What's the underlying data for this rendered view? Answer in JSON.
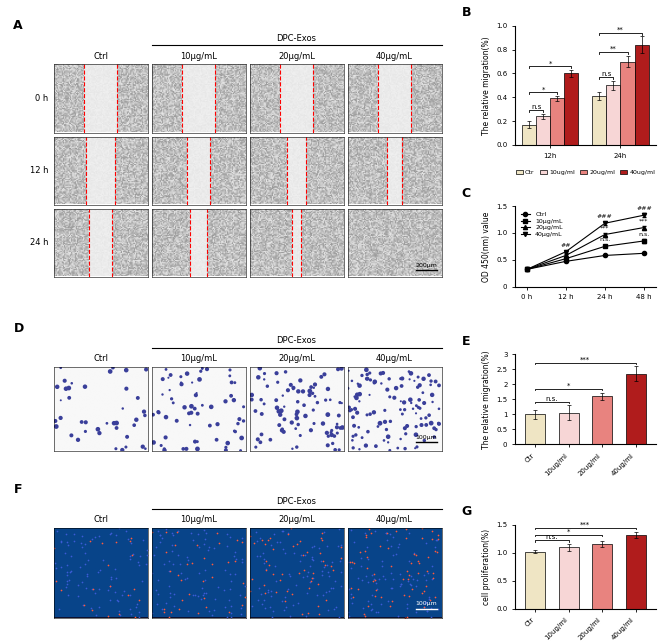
{
  "chart_data": [
    {
      "panel_label": "B",
      "type": "bar",
      "y_label": "The relative migration(%)",
      "categories": [
        "12h",
        "24h"
      ],
      "series": [
        {
          "name": "Ctr",
          "color": "#efe5c4",
          "values": [
            0.17,
            0.41
          ],
          "errors": [
            0.03,
            0.03
          ]
        },
        {
          "name": "10ug/ml",
          "color": "#f7d6d6",
          "values": [
            0.24,
            0.5
          ],
          "errors": [
            0.02,
            0.04
          ]
        },
        {
          "name": "20ug/ml",
          "color": "#e8837f",
          "values": [
            0.39,
            0.7
          ],
          "errors": [
            0.02,
            0.05
          ]
        },
        {
          "name": "40ug/ml",
          "color": "#b01c1c",
          "values": [
            0.6,
            0.84
          ],
          "errors": [
            0.03,
            0.07
          ]
        }
      ],
      "ylim": [
        0,
        1.0
      ],
      "yticks": [
        0.0,
        0.2,
        0.4,
        0.6,
        0.8,
        1.0
      ],
      "legend": "bottom",
      "significance": [
        {
          "category": "12h",
          "from": "Ctr",
          "to": "10ug/ml",
          "text": "n.s"
        },
        {
          "category": "12h",
          "from": "Ctr",
          "to": "20ug/ml",
          "text": "*"
        },
        {
          "category": "12h",
          "from": "Ctr",
          "to": "40ug/ml",
          "text": "*"
        },
        {
          "category": "24h",
          "from": "Ctr",
          "to": "10ug/ml",
          "text": "n.s"
        },
        {
          "category": "24h",
          "from": "Ctr",
          "to": "20ug/ml",
          "text": "**"
        },
        {
          "category": "24h",
          "from": "Ctr",
          "to": "40ug/ml",
          "text": "**"
        }
      ]
    },
    {
      "panel_label": "C",
      "type": "line",
      "y_label": "OD 450(nm) value",
      "categories": [
        "0 h",
        "12 h",
        "24 h",
        "48 h"
      ],
      "series": [
        {
          "name": "Ctrl",
          "color": "#000000",
          "marker": "circle",
          "line_style": "solid",
          "values": [
            0.32,
            0.47,
            0.58,
            0.62
          ],
          "errors": [
            0.01,
            0.01,
            0.01,
            0.01
          ]
        },
        {
          "name": "10μg/mL",
          "color": "#000000",
          "marker": "square",
          "line_style": "solid",
          "values": [
            0.32,
            0.52,
            0.75,
            0.85
          ],
          "errors": [
            0.01,
            0.02,
            0.02,
            0.03
          ]
        },
        {
          "name": "20μg/mL",
          "color": "#000000",
          "marker": "triangle_up",
          "line_style": "solid",
          "values": [
            0.32,
            0.58,
            0.97,
            1.1
          ],
          "errors": [
            0.01,
            0.02,
            0.03,
            0.03
          ]
        },
        {
          "name": "40μg/mL",
          "color": "#000000",
          "marker": "triangle_down",
          "line_style": "solid",
          "values": [
            0.32,
            0.65,
            1.18,
            1.33
          ],
          "errors": [
            0.01,
            0.02,
            0.03,
            0.04
          ]
        }
      ],
      "ylim": [
        0,
        1.5
      ],
      "yticks": [
        0,
        0.5,
        1.0,
        1.5
      ],
      "legend": "upper left",
      "annotations": [
        {
          "category": "12 h",
          "series": "40μg/mL",
          "text": "##"
        },
        {
          "category": "24 h",
          "series": "40μg/mL",
          "text": "###"
        },
        {
          "category": "24 h",
          "series": "20μg/mL",
          "text": "***"
        },
        {
          "category": "24 h",
          "series": "10μg/mL",
          "text": "n.s."
        },
        {
          "category": "48 h",
          "series": "40μg/mL",
          "text": "###"
        },
        {
          "category": "48 h",
          "series": "20μg/mL",
          "text": "***"
        },
        {
          "category": "48 h",
          "series": "10μg/mL",
          "text": "n.s."
        }
      ]
    },
    {
      "panel_label": "E",
      "type": "bar",
      "y_label": "The relative migration(%)",
      "categories": [
        "Ctr",
        "10ug/ml",
        "20ug/ml",
        "40ug/ml"
      ],
      "values": [
        1.0,
        1.05,
        1.6,
        2.35
      ],
      "errors": [
        0.15,
        0.25,
        0.12,
        0.25
      ],
      "colors": [
        "#efe5c4",
        "#f7d6d6",
        "#e8837f",
        "#b01c1c"
      ],
      "ylim": [
        0,
        3
      ],
      "yticks": [
        0,
        0.5,
        1,
        1.5,
        2,
        2.5,
        3
      ],
      "significance": [
        {
          "from": "Ctr",
          "to": "10ug/ml",
          "text": "n.s."
        },
        {
          "from": "Ctr",
          "to": "20ug/ml",
          "text": "*"
        },
        {
          "from": "Ctr",
          "to": "40ug/ml",
          "text": "***"
        }
      ]
    },
    {
      "panel_label": "G",
      "type": "bar",
      "y_label": "cell proliferation(%)",
      "categories": [
        "Ctr",
        "10ug/ml",
        "20ug/ml",
        "40ug/ml"
      ],
      "values": [
        1.02,
        1.1,
        1.16,
        1.32
      ],
      "errors": [
        0.03,
        0.06,
        0.05,
        0.06
      ],
      "colors": [
        "#efe5c4",
        "#f7d6d6",
        "#e8837f",
        "#b01c1c"
      ],
      "ylim": [
        0,
        1.5
      ],
      "yticks": [
        0.0,
        0.5,
        1.0,
        1.5
      ],
      "significance": [
        {
          "from": "Ctr",
          "to": "10ug/ml",
          "text": "n.s."
        },
        {
          "from": "Ctr",
          "to": "20ug/ml",
          "text": "*"
        },
        {
          "from": "Ctr",
          "to": "40ug/ml",
          "text": "***"
        }
      ]
    }
  ],
  "image_panels": [
    {
      "panel_label": "A",
      "group_label": "DPC-Exos",
      "columns": [
        "Ctrl",
        "10μg/mL",
        "20μg/mL",
        "40μg/mL"
      ],
      "rows": [
        "0 h",
        "12 h",
        "24 h"
      ],
      "scale_bar": "200μm"
    },
    {
      "panel_label": "D",
      "group_label": "DPC-Exos",
      "columns": [
        "Ctrl",
        "10μg/mL",
        "20μg/mL",
        "40μg/mL"
      ],
      "rows": [],
      "scale_bar": "100μm"
    },
    {
      "panel_label": "F",
      "group_label": "DPC-Exos",
      "columns": [
        "Ctrl",
        "10μg/mL",
        "20μg/mL",
        "40μg/mL"
      ],
      "rows": [],
      "scale_bar": "100μm"
    }
  ]
}
